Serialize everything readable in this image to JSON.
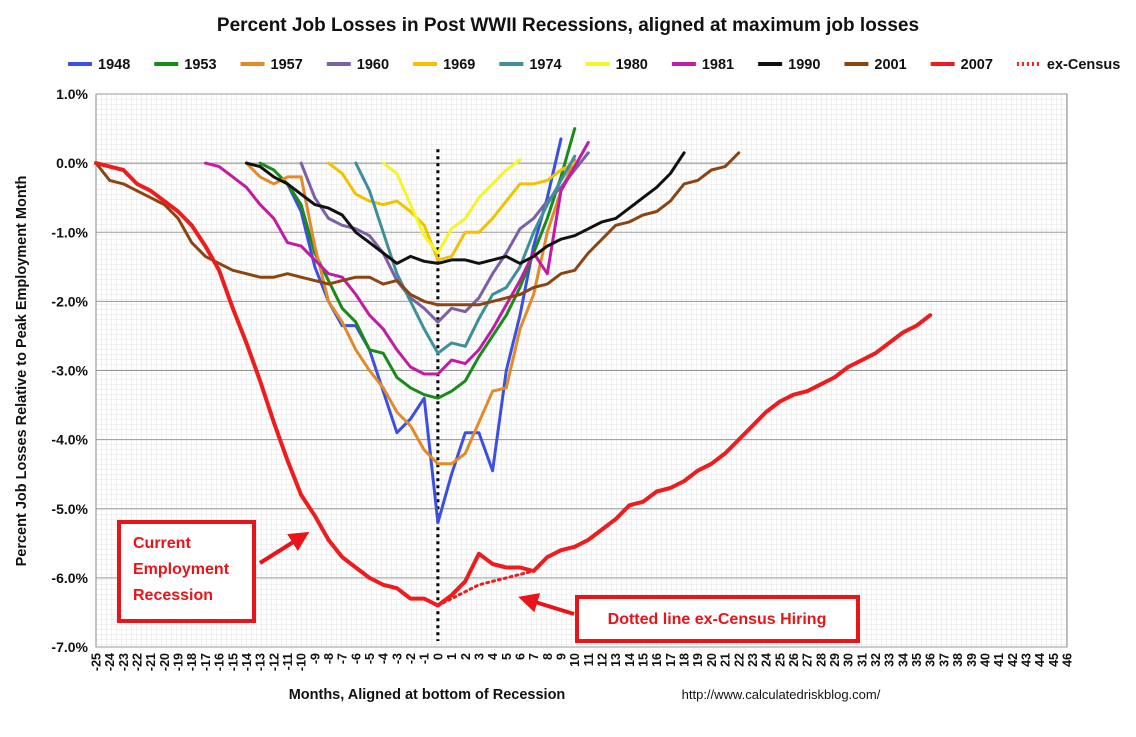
{
  "chart_data": {
    "type": "line",
    "title": "Percent Job Losses in Post WWII Recessions, aligned at maximum job losses",
    "xlabel": "Months, Aligned at bottom of Recession",
    "ylabel": "Percent Job Losses Relative to Peak Employment Month",
    "source": "http://www.calculatedriskblog.com/",
    "xlim": [
      -25,
      46
    ],
    "ylim": [
      -7.0,
      1.0
    ],
    "x_ticks": [
      -25,
      -24,
      -23,
      -22,
      -21,
      -20,
      -19,
      -18,
      -17,
      -16,
      -15,
      -14,
      -13,
      -12,
      -11,
      -10,
      -9,
      -8,
      -7,
      -6,
      -5,
      -4,
      -3,
      -2,
      -1,
      0,
      1,
      2,
      3,
      4,
      5,
      6,
      7,
      8,
      9,
      10,
      11,
      12,
      13,
      14,
      15,
      16,
      17,
      18,
      19,
      20,
      21,
      22,
      23,
      24,
      25,
      26,
      27,
      28,
      29,
      30,
      31,
      32,
      33,
      34,
      35,
      36,
      37,
      38,
      39,
      40,
      41,
      42,
      43,
      44,
      45,
      46
    ],
    "y_ticks": [
      "1.0%",
      "0.0%",
      "-1.0%",
      "-2.0%",
      "-3.0%",
      "-4.0%",
      "-5.0%",
      "-6.0%",
      "-7.0%"
    ],
    "y_tick_values": [
      1,
      0,
      -1,
      -2,
      -3,
      -4,
      -5,
      -6,
      -7
    ],
    "grid": true,
    "legend_position": "top",
    "vertical_marker_x": 0,
    "series": [
      {
        "name": "1948",
        "color": "#3b4fe0",
        "width": 3,
        "x": [
          -11,
          -10,
          -9,
          -8,
          -7,
          -6,
          -5,
          -4,
          -3,
          -2,
          -1,
          0,
          1,
          2,
          3,
          4,
          5,
          6,
          7,
          8,
          9
        ],
        "y": [
          -0.3,
          -0.7,
          -1.5,
          -2.0,
          -2.35,
          -2.35,
          -2.7,
          -3.3,
          -3.9,
          -3.7,
          -3.4,
          -5.2,
          -4.5,
          -3.9,
          -3.9,
          -4.45,
          -3.0,
          -2.2,
          -1.2,
          -0.5,
          0.35
        ]
      },
      {
        "name": "1953",
        "color": "#1a8a1a",
        "width": 3,
        "x": [
          -13,
          -12,
          -11,
          -10,
          -9,
          -8,
          -7,
          -6,
          -5,
          -4,
          -3,
          -2,
          -1,
          0,
          1,
          2,
          3,
          4,
          5,
          6,
          7,
          8,
          9,
          10
        ],
        "y": [
          0.0,
          -0.1,
          -0.3,
          -0.6,
          -1.3,
          -1.7,
          -2.1,
          -2.3,
          -2.7,
          -2.75,
          -3.1,
          -3.25,
          -3.35,
          -3.4,
          -3.3,
          -3.15,
          -2.8,
          -2.5,
          -2.2,
          -1.8,
          -1.3,
          -0.8,
          -0.2,
          0.5
        ]
      },
      {
        "name": "1957",
        "color": "#e38a2a",
        "width": 3,
        "x": [
          -14,
          -13,
          -12,
          -11,
          -10,
          -9,
          -8,
          -7,
          -6,
          -5,
          -4,
          -3,
          -2,
          -1,
          0,
          1,
          2,
          3,
          4,
          5,
          6,
          7,
          8,
          9,
          10
        ],
        "y": [
          0.0,
          -0.2,
          -0.3,
          -0.2,
          -0.2,
          -1.2,
          -2.0,
          -2.3,
          -2.7,
          -3.0,
          -3.25,
          -3.6,
          -3.8,
          -4.15,
          -4.35,
          -4.35,
          -4.2,
          -3.75,
          -3.3,
          -3.25,
          -2.4,
          -1.9,
          -1.0,
          -0.4,
          0.05
        ]
      },
      {
        "name": "1960",
        "color": "#7b5fa8",
        "width": 3,
        "x": [
          -10,
          -9,
          -8,
          -7,
          -6,
          -5,
          -4,
          -3,
          -2,
          -1,
          0,
          1,
          2,
          3,
          4,
          5,
          6,
          7,
          8,
          9,
          10,
          11
        ],
        "y": [
          0.0,
          -0.5,
          -0.8,
          -0.9,
          -0.95,
          -1.05,
          -1.3,
          -1.7,
          -1.95,
          -2.1,
          -2.3,
          -2.1,
          -2.15,
          -1.95,
          -1.6,
          -1.3,
          -0.95,
          -0.8,
          -0.55,
          -0.35,
          -0.1,
          0.15
        ]
      },
      {
        "name": "1969",
        "color": "#f2c200",
        "width": 3,
        "x": [
          -8,
          -7,
          -6,
          -5,
          -4,
          -3,
          -2,
          -1,
          0,
          1,
          2,
          3,
          4,
          5,
          6,
          7,
          8,
          9,
          10
        ],
        "y": [
          0.0,
          -0.15,
          -0.45,
          -0.55,
          -0.6,
          -0.55,
          -0.7,
          -0.9,
          -1.4,
          -1.35,
          -1.0,
          -1.0,
          -0.8,
          -0.55,
          -0.3,
          -0.3,
          -0.25,
          -0.1,
          0.0
        ]
      },
      {
        "name": "1974",
        "color": "#3e8f9a",
        "width": 3,
        "x": [
          -6,
          -5,
          -4,
          -3,
          -2,
          -1,
          0,
          1,
          2,
          3,
          4,
          5,
          6,
          7,
          8,
          9,
          10
        ],
        "y": [
          0.0,
          -0.4,
          -1.0,
          -1.6,
          -2.0,
          -2.4,
          -2.75,
          -2.6,
          -2.65,
          -2.25,
          -1.9,
          -1.8,
          -1.5,
          -1.0,
          -0.6,
          -0.25,
          0.1
        ]
      },
      {
        "name": "1980",
        "color": "#f5f52a",
        "width": 3,
        "x": [
          -4,
          -3,
          -2,
          -1,
          0,
          1,
          2,
          3,
          4,
          5,
          6
        ],
        "y": [
          0.0,
          -0.15,
          -0.6,
          -1.05,
          -1.3,
          -0.95,
          -0.8,
          -0.5,
          -0.3,
          -0.1,
          0.05
        ]
      },
      {
        "name": "1981",
        "color": "#c21ca6",
        "width": 3,
        "x": [
          -17,
          -16,
          -15,
          -14,
          -13,
          -12,
          -11,
          -10,
          -9,
          -8,
          -7,
          -6,
          -5,
          -4,
          -3,
          -2,
          -1,
          0,
          1,
          2,
          3,
          4,
          5,
          6,
          7,
          8,
          9,
          10,
          11
        ],
        "y": [
          0.0,
          -0.05,
          -0.2,
          -0.35,
          -0.6,
          -0.8,
          -1.15,
          -1.2,
          -1.4,
          -1.6,
          -1.65,
          -1.9,
          -2.2,
          -2.4,
          -2.7,
          -2.95,
          -3.05,
          -3.05,
          -2.85,
          -2.9,
          -2.7,
          -2.4,
          -2.05,
          -1.7,
          -1.3,
          -1.6,
          -0.4,
          -0.05,
          0.3
        ]
      },
      {
        "name": "1990",
        "color": "#111111",
        "width": 3,
        "x": [
          -14,
          -13,
          -12,
          -11,
          -10,
          -9,
          -8,
          -7,
          -6,
          -5,
          -4,
          -3,
          -2,
          -1,
          0,
          1,
          2,
          3,
          4,
          5,
          6,
          7,
          8,
          9,
          10,
          11,
          12,
          13,
          14,
          15,
          16,
          17,
          18
        ],
        "y": [
          0.0,
          -0.05,
          -0.2,
          -0.3,
          -0.45,
          -0.6,
          -0.65,
          -0.75,
          -1.0,
          -1.15,
          -1.3,
          -1.45,
          -1.35,
          -1.42,
          -1.45,
          -1.4,
          -1.4,
          -1.45,
          -1.4,
          -1.35,
          -1.45,
          -1.35,
          -1.2,
          -1.1,
          -1.05,
          -0.95,
          -0.85,
          -0.8,
          -0.65,
          -0.5,
          -0.35,
          -0.15,
          0.15
        ]
      },
      {
        "name": "2001",
        "color": "#8b4513",
        "width": 3,
        "x": [
          -25,
          -24,
          -23,
          -22,
          -21,
          -20,
          -19,
          -18,
          -17,
          -16,
          -15,
          -14,
          -13,
          -12,
          -11,
          -10,
          -9,
          -8,
          -7,
          -6,
          -5,
          -4,
          -3,
          -2,
          -1,
          0,
          1,
          2,
          3,
          4,
          5,
          6,
          7,
          8,
          9,
          10,
          11,
          12,
          13,
          14,
          15,
          16,
          17,
          18,
          19,
          20,
          21,
          22
        ],
        "y": [
          0.0,
          -0.25,
          -0.3,
          -0.4,
          -0.5,
          -0.6,
          -0.8,
          -1.15,
          -1.35,
          -1.45,
          -1.55,
          -1.6,
          -1.65,
          -1.65,
          -1.6,
          -1.65,
          -1.7,
          -1.75,
          -1.7,
          -1.65,
          -1.65,
          -1.75,
          -1.7,
          -1.9,
          -2.0,
          -2.05,
          -2.05,
          -2.05,
          -2.05,
          -2.0,
          -1.95,
          -1.9,
          -1.8,
          -1.75,
          -1.6,
          -1.55,
          -1.3,
          -1.1,
          -0.9,
          -0.85,
          -0.75,
          -0.7,
          -0.55,
          -0.3,
          -0.25,
          -0.1,
          -0.05,
          0.15
        ]
      },
      {
        "name": "2007",
        "color": "#ee1c1c",
        "width": 4,
        "x": [
          -25,
          -24,
          -23,
          -22,
          -21,
          -20,
          -19,
          -18,
          -17,
          -16,
          -15,
          -14,
          -13,
          -12,
          -11,
          -10,
          -9,
          -8,
          -7,
          -6,
          -5,
          -4,
          -3,
          -2,
          -1,
          0,
          1,
          2,
          3,
          4,
          5,
          6,
          7,
          8,
          9,
          10,
          11,
          12,
          13,
          14,
          15,
          16,
          17,
          18,
          19,
          20,
          21,
          22,
          23,
          24,
          25,
          26,
          27,
          28,
          29,
          30,
          31,
          32,
          33,
          34,
          35,
          36
        ],
        "y": [
          0.0,
          -0.05,
          -0.1,
          -0.3,
          -0.4,
          -0.55,
          -0.7,
          -0.9,
          -1.2,
          -1.55,
          -2.1,
          -2.6,
          -3.15,
          -3.75,
          -4.3,
          -4.8,
          -5.1,
          -5.45,
          -5.7,
          -5.85,
          -6.0,
          -6.1,
          -6.15,
          -6.3,
          -6.3,
          -6.4,
          -6.25,
          -6.05,
          -5.65,
          -5.8,
          -5.85,
          -5.85,
          -5.9,
          -5.7,
          -5.6,
          -5.55,
          -5.45,
          -5.3,
          -5.15,
          -4.95,
          -4.9,
          -4.75,
          -4.7,
          -4.6,
          -4.45,
          -4.35,
          -4.2,
          -4.0,
          -3.8,
          -3.6,
          -3.45,
          -3.35,
          -3.3,
          -3.2,
          -3.1,
          -2.95,
          -2.85,
          -2.75,
          -2.6,
          -2.45,
          -2.35,
          -2.2
        ]
      },
      {
        "name": "ex-Census",
        "color": "#ee1c1c",
        "width": 3,
        "dashed": true,
        "x": [
          0,
          1,
          2,
          3,
          4,
          5,
          6,
          7
        ],
        "y": [
          -6.4,
          -6.3,
          -6.2,
          -6.1,
          -6.05,
          -6.0,
          -5.95,
          -5.9
        ]
      }
    ],
    "annotations": [
      {
        "name": "current-recession-callout",
        "lines": [
          "Current",
          "Employment",
          "Recession"
        ]
      },
      {
        "name": "ex-census-callout",
        "lines": [
          "Dotted line ex-Census Hiring"
        ]
      }
    ]
  }
}
